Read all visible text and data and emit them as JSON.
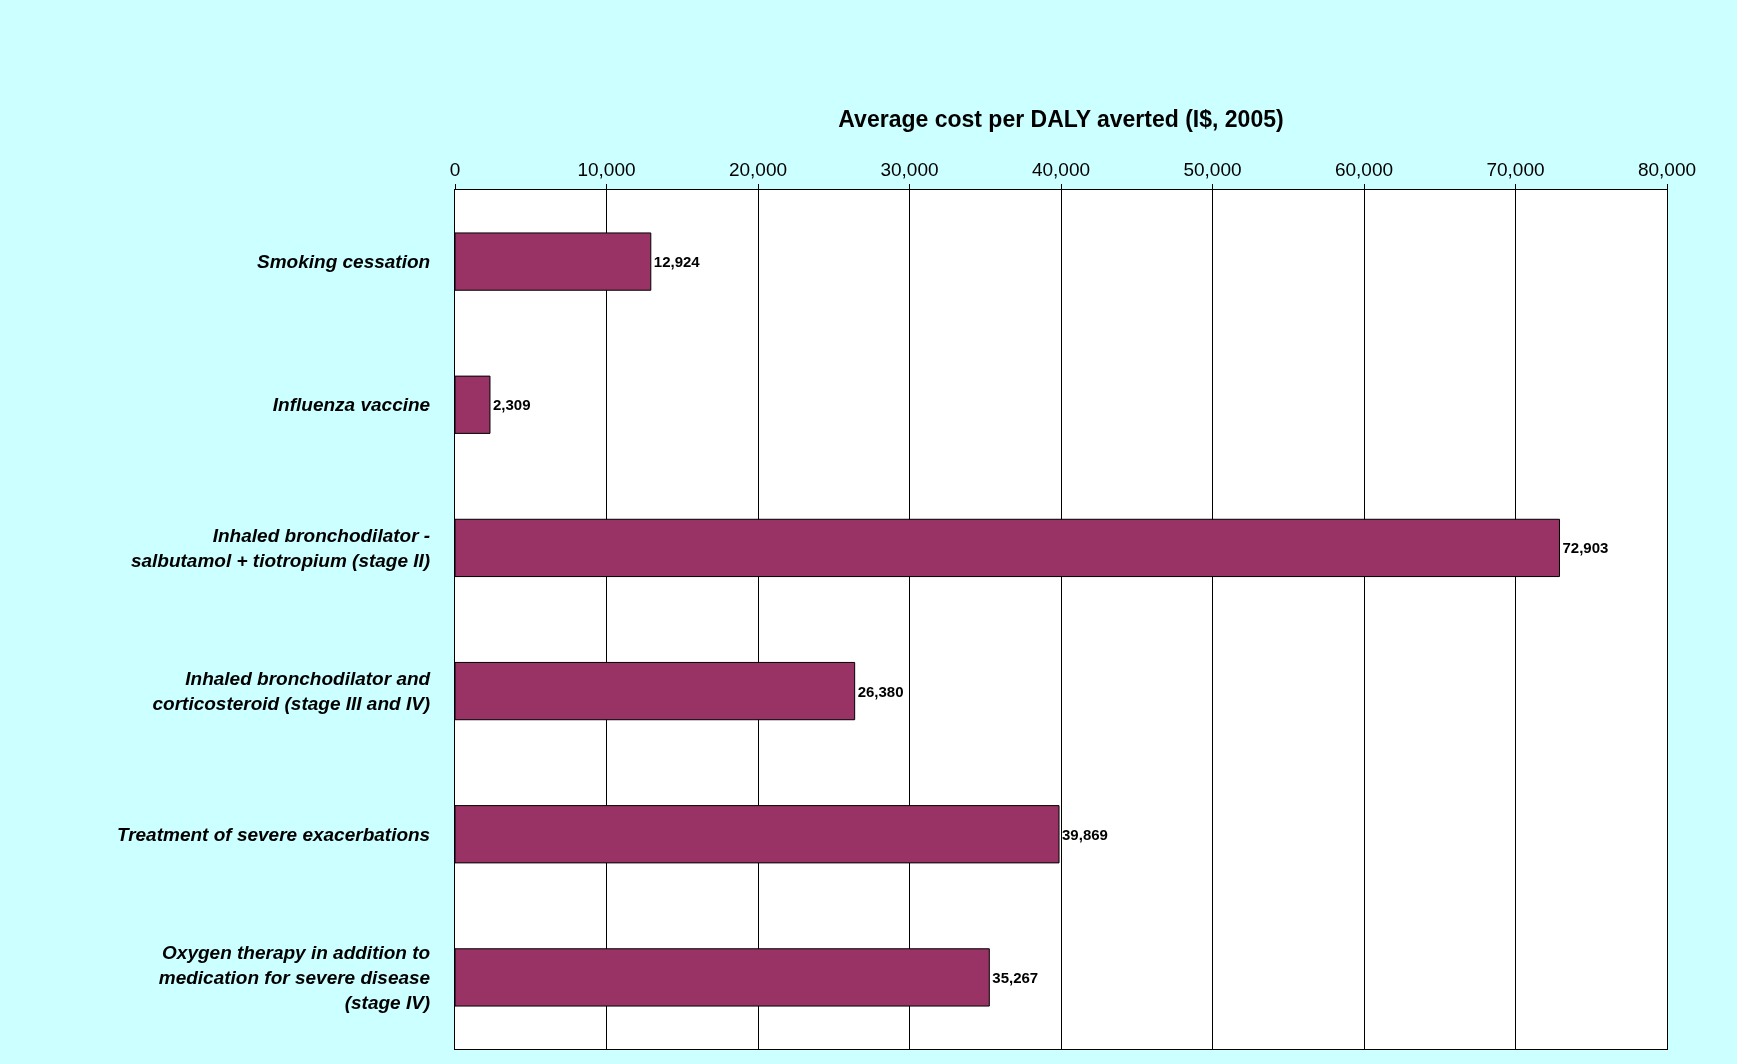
{
  "chart_data": {
    "type": "bar",
    "orientation": "horizontal",
    "xlabel": "Average cost per DALY averted (I$, 2005)",
    "categories": [
      "Smoking cessation",
      "Influenza vaccine",
      "Inhaled bronchodilator - salbutamol + tiotropium (stage II)",
      "Inhaled bronchodilator and corticosteroid (stage III and IV)",
      "Treatment of severe exacerbations",
      "Oxygen therapy in addition to medication for severe disease (stage IV)"
    ],
    "values": [
      12924,
      2309,
      72903,
      26380,
      39869,
      35267
    ],
    "value_labels": [
      "12,924",
      "2,309",
      "72,903",
      "26,380",
      "39,869",
      "35,267"
    ],
    "color": "#993366",
    "xlim": [
      0,
      80000
    ],
    "xticks": [
      {
        "value": 0,
        "label": "0"
      },
      {
        "value": 10000,
        "label": "10,000"
      },
      {
        "value": 20000,
        "label": "20,000"
      },
      {
        "value": 30000,
        "label": "30,000"
      },
      {
        "value": 40000,
        "label": "40,000"
      },
      {
        "value": 50000,
        "label": "50,000"
      },
      {
        "value": 60000,
        "label": "60,000"
      },
      {
        "value": 70000,
        "label": "70,000"
      },
      {
        "value": 80000,
        "label": "80,000"
      }
    ],
    "grid": "x",
    "legend": false
  }
}
